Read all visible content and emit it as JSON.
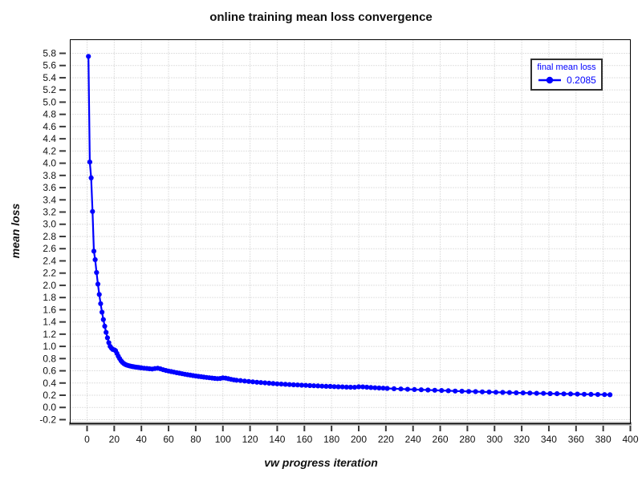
{
  "page": {
    "background": "#ffffff"
  },
  "chart_data": {
    "type": "line",
    "title": "online training mean loss convergence",
    "xlabel": "vw progress iteration",
    "ylabel": "mean loss",
    "xlim": [
      -12.4,
      400
    ],
    "ylim": [
      -0.266,
      6.023
    ],
    "xticks": [
      0,
      20,
      40,
      60,
      80,
      100,
      120,
      140,
      160,
      180,
      200,
      220,
      240,
      260,
      280,
      300,
      320,
      340,
      360,
      380,
      400
    ],
    "yticks": [
      -0.2,
      0,
      0.2,
      0.4,
      0.6,
      0.8,
      1,
      1.2,
      1.4,
      1.6,
      1.8,
      2,
      2.2,
      2.4,
      2.6,
      2.8,
      3,
      3.2,
      3.4,
      3.6,
      3.8,
      4,
      4.2,
      4.4,
      4.6,
      4.8,
      5,
      5.2,
      5.4,
      5.6,
      5.8
    ],
    "grid": true,
    "legend": {
      "title": "final mean loss",
      "value": "0.2085",
      "position": "top-right"
    },
    "colors": {
      "line": "#0000ff",
      "grid": "#c3c3c3",
      "frame": "#000000",
      "axis_baseline": "#8f8f8f",
      "tick": "#3a3a3a",
      "text": "#111111",
      "legend_text": "#0000ff",
      "legend_border": "#2f2f2f"
    },
    "series": [
      {
        "name": "final mean loss",
        "color": "#0000ff",
        "marker": "circle",
        "final_value": 0.2085,
        "points": [
          [
            1,
            5.75
          ],
          [
            2,
            4.02
          ],
          [
            3,
            3.76
          ],
          [
            4,
            3.21
          ],
          [
            5,
            2.56
          ],
          [
            6,
            2.42
          ],
          [
            7,
            2.21
          ],
          [
            8,
            2.02
          ],
          [
            9,
            1.85
          ],
          [
            10,
            1.7
          ],
          [
            11,
            1.56
          ],
          [
            12,
            1.44
          ],
          [
            13,
            1.33
          ],
          [
            14,
            1.23
          ],
          [
            15,
            1.14
          ],
          [
            16,
            1.06
          ],
          [
            17,
            1.0
          ],
          [
            18,
            0.97
          ],
          [
            19,
            0.95
          ],
          [
            20,
            0.945
          ],
          [
            21,
            0.93
          ],
          [
            22,
            0.885
          ],
          [
            23,
            0.84
          ],
          [
            24,
            0.8
          ],
          [
            25,
            0.765
          ],
          [
            26,
            0.74
          ],
          [
            27,
            0.72
          ],
          [
            28,
            0.705
          ],
          [
            29,
            0.695
          ],
          [
            30,
            0.688
          ],
          [
            31,
            0.682
          ],
          [
            32,
            0.677
          ],
          [
            33,
            0.672
          ],
          [
            34,
            0.668
          ],
          [
            35,
            0.664
          ],
          [
            36,
            0.66
          ],
          [
            37,
            0.657
          ],
          [
            38,
            0.654
          ],
          [
            39,
            0.651
          ],
          [
            40,
            0.648
          ],
          [
            42,
            0.643
          ],
          [
            44,
            0.638
          ],
          [
            46,
            0.634
          ],
          [
            48,
            0.63
          ],
          [
            50,
            0.637
          ],
          [
            52,
            0.642
          ],
          [
            54,
            0.632
          ],
          [
            56,
            0.618
          ],
          [
            58,
            0.606
          ],
          [
            60,
            0.596
          ],
          [
            62,
            0.587
          ],
          [
            64,
            0.578
          ],
          [
            66,
            0.569
          ],
          [
            68,
            0.561
          ],
          [
            70,
            0.552
          ],
          [
            72,
            0.544
          ],
          [
            74,
            0.536
          ],
          [
            76,
            0.529
          ],
          [
            78,
            0.522
          ],
          [
            80,
            0.515
          ],
          [
            82,
            0.509
          ],
          [
            84,
            0.503
          ],
          [
            86,
            0.497
          ],
          [
            88,
            0.491
          ],
          [
            90,
            0.486
          ],
          [
            92,
            0.481
          ],
          [
            94,
            0.476
          ],
          [
            96,
            0.472
          ],
          [
            98,
            0.475
          ],
          [
            100,
            0.484
          ],
          [
            102,
            0.48
          ],
          [
            104,
            0.47
          ],
          [
            106,
            0.46
          ],
          [
            108,
            0.452
          ],
          [
            110,
            0.446
          ],
          [
            113,
            0.44
          ],
          [
            116,
            0.433
          ],
          [
            119,
            0.426
          ],
          [
            122,
            0.419
          ],
          [
            125,
            0.413
          ],
          [
            128,
            0.407
          ],
          [
            131,
            0.402
          ],
          [
            134,
            0.397
          ],
          [
            137,
            0.392
          ],
          [
            140,
            0.387
          ],
          [
            143,
            0.383
          ],
          [
            146,
            0.379
          ],
          [
            149,
            0.375
          ],
          [
            152,
            0.371
          ],
          [
            155,
            0.368
          ],
          [
            158,
            0.364
          ],
          [
            161,
            0.361
          ],
          [
            164,
            0.358
          ],
          [
            167,
            0.355
          ],
          [
            170,
            0.352
          ],
          [
            173,
            0.349
          ],
          [
            176,
            0.346
          ],
          [
            179,
            0.344
          ],
          [
            182,
            0.341
          ],
          [
            185,
            0.338
          ],
          [
            188,
            0.336
          ],
          [
            191,
            0.333
          ],
          [
            194,
            0.331
          ],
          [
            197,
            0.33
          ],
          [
            200,
            0.338
          ],
          [
            203,
            0.337
          ],
          [
            206,
            0.331
          ],
          [
            209,
            0.326
          ],
          [
            212,
            0.322
          ],
          [
            215,
            0.318
          ],
          [
            218,
            0.315
          ],
          [
            221,
            0.312
          ],
          [
            226,
            0.307
          ],
          [
            231,
            0.302
          ],
          [
            236,
            0.297
          ],
          [
            241,
            0.293
          ],
          [
            246,
            0.289
          ],
          [
            251,
            0.285
          ],
          [
            256,
            0.281
          ],
          [
            261,
            0.277
          ],
          [
            266,
            0.273
          ],
          [
            271,
            0.269
          ],
          [
            276,
            0.266
          ],
          [
            281,
            0.262
          ],
          [
            286,
            0.259
          ],
          [
            291,
            0.255
          ],
          [
            296,
            0.252
          ],
          [
            301,
            0.249
          ],
          [
            306,
            0.246
          ],
          [
            311,
            0.243
          ],
          [
            316,
            0.24
          ],
          [
            321,
            0.238
          ],
          [
            326,
            0.235
          ],
          [
            331,
            0.232
          ],
          [
            336,
            0.23
          ],
          [
            341,
            0.227
          ],
          [
            346,
            0.225
          ],
          [
            351,
            0.223
          ],
          [
            356,
            0.221
          ],
          [
            361,
            0.219
          ],
          [
            366,
            0.216
          ],
          [
            371,
            0.214
          ],
          [
            376,
            0.212
          ],
          [
            381,
            0.21
          ],
          [
            385,
            0.2085
          ]
        ]
      }
    ]
  }
}
